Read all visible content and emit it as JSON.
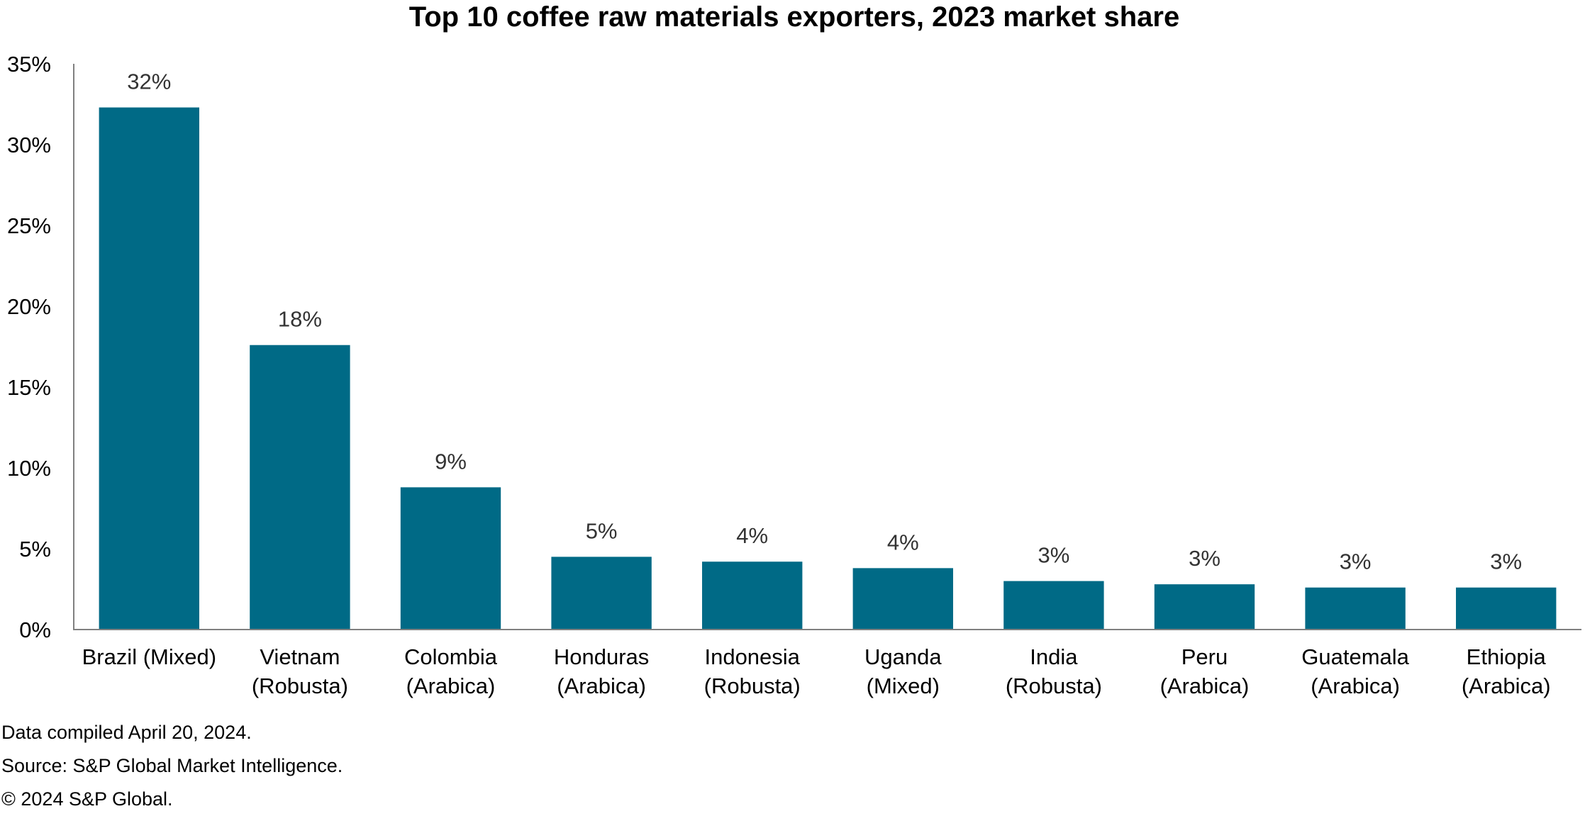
{
  "chart_data": {
    "type": "bar",
    "title": "Top 10 coffee raw materials exporters, 2023 market share",
    "categories": [
      [
        "Brazil (Mixed)"
      ],
      [
        "Vietnam",
        "(Robusta)"
      ],
      [
        "Colombia",
        "(Arabica)"
      ],
      [
        "Honduras",
        "(Arabica)"
      ],
      [
        "Indonesia",
        "(Robusta)"
      ],
      [
        "Uganda",
        "(Mixed)"
      ],
      [
        "India",
        "(Robusta)"
      ],
      [
        "Peru",
        "(Arabica)"
      ],
      [
        "Guatemala",
        "(Arabica)"
      ],
      [
        "Ethiopia",
        "(Arabica)"
      ]
    ],
    "values": [
      32.3,
      17.6,
      8.8,
      4.5,
      4.2,
      3.8,
      3.0,
      2.8,
      2.6,
      2.6
    ],
    "data_labels": [
      "32%",
      "18%",
      "9%",
      "5%",
      "4%",
      "4%",
      "3%",
      "3%",
      "3%",
      "3%"
    ],
    "ylim": [
      0,
      35
    ],
    "yticks": [
      0,
      5,
      10,
      15,
      20,
      25,
      30,
      35
    ],
    "ytick_labels": [
      "0%",
      "5%",
      "10%",
      "15%",
      "20%",
      "25%",
      "30%",
      "35%"
    ],
    "xlabel": "",
    "ylabel": "",
    "grid": false,
    "bar_color": "#006a86"
  },
  "footnotes": {
    "line1": "Data compiled April 20, 2024.",
    "line2": "Source: S&P Global Market Intelligence.",
    "line3": "© 2024 S&P Global."
  }
}
